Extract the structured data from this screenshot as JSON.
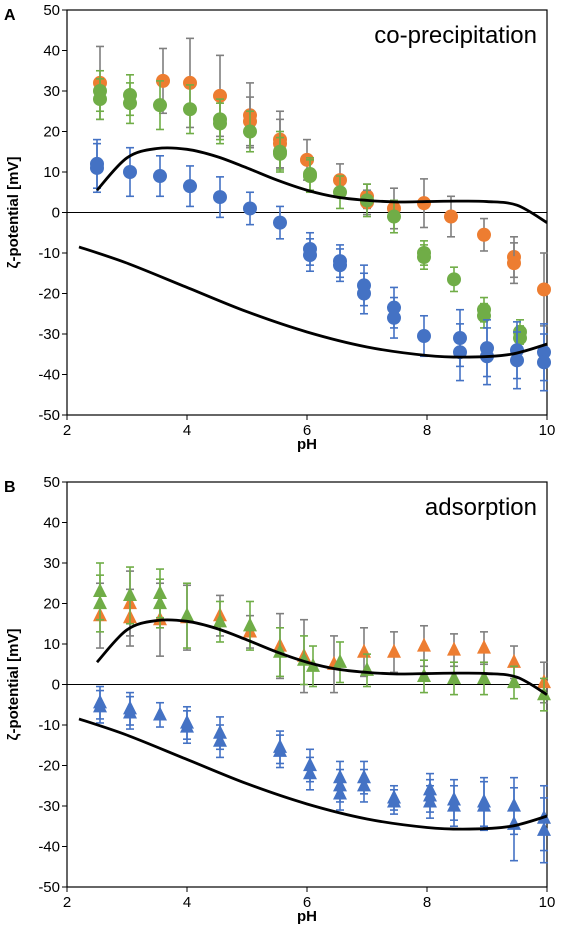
{
  "chart_data": [
    {
      "panel": "A",
      "type": "scatter",
      "annotation": "co-precipitation",
      "marker": "circle",
      "xlabel": "pH",
      "ylabel": "ζ-potential [mV]",
      "xlim": [
        2,
        10
      ],
      "ylim": [
        -50,
        50
      ],
      "xticks": [
        2,
        4,
        6,
        8,
        10
      ],
      "yticks": [
        -50,
        -40,
        -30,
        -20,
        -10,
        0,
        10,
        20,
        30,
        40,
        50
      ],
      "grid": false,
      "series": [
        {
          "color": "#ED7D31",
          "error_color": "#7F7F7F",
          "points": [
            [
              2.55,
              32,
              9
            ],
            [
              3.6,
              32.5,
              8
            ],
            [
              4.05,
              32,
              11
            ],
            [
              4.55,
              28.8,
              10
            ],
            [
              5.05,
              24,
              8
            ],
            [
              5.05,
              22.5,
              6
            ],
            [
              5.55,
              18,
              7
            ],
            [
              5.55,
              17,
              6
            ],
            [
              6.0,
              13,
              5
            ],
            [
              6.55,
              8,
              4
            ],
            [
              7.0,
              4,
              3
            ],
            [
              7.0,
              2.5,
              3
            ],
            [
              7.45,
              1,
              5
            ],
            [
              7.95,
              2.3,
              6
            ],
            [
              8.4,
              -1,
              5
            ],
            [
              8.95,
              -5.5,
              4
            ],
            [
              9.45,
              -11,
              5
            ],
            [
              9.45,
              -12.5,
              5
            ],
            [
              9.95,
              -19,
              9
            ]
          ]
        },
        {
          "color": "#70AD47",
          "error_color": "#70AD47",
          "points": [
            [
              2.55,
              30,
              5
            ],
            [
              2.55,
              28,
              5
            ],
            [
              3.05,
              29,
              5
            ],
            [
              3.05,
              27,
              5
            ],
            [
              3.55,
              26.5,
              6
            ],
            [
              4.05,
              25.5,
              6
            ],
            [
              4.55,
              23,
              5
            ],
            [
              4.55,
              22,
              5
            ],
            [
              5.05,
              20,
              5
            ],
            [
              5.55,
              15,
              5
            ],
            [
              5.55,
              14.5,
              4
            ],
            [
              6.05,
              9.5,
              4
            ],
            [
              6.05,
              9,
              4
            ],
            [
              6.55,
              5,
              4
            ],
            [
              7.0,
              3,
              4
            ],
            [
              7.45,
              -1,
              4
            ],
            [
              7.95,
              -10,
              3
            ],
            [
              7.95,
              -11,
              3
            ],
            [
              8.45,
              -16.5,
              3
            ],
            [
              8.95,
              -24,
              3
            ],
            [
              8.95,
              -25.5,
              3
            ],
            [
              9.55,
              -29.5,
              3
            ],
            [
              9.55,
              -31,
              3
            ]
          ]
        },
        {
          "color": "#4472C4",
          "error_color": "#4472C4",
          "points": [
            [
              2.5,
              12,
              6
            ],
            [
              2.5,
              11,
              6
            ],
            [
              3.05,
              10,
              6
            ],
            [
              3.55,
              9,
              5
            ],
            [
              4.05,
              6.5,
              5
            ],
            [
              4.55,
              3.8,
              5
            ],
            [
              5.05,
              1,
              4
            ],
            [
              5.55,
              -2.5,
              4
            ],
            [
              6.05,
              -9,
              4
            ],
            [
              6.05,
              -10.5,
              4
            ],
            [
              6.55,
              -12,
              4
            ],
            [
              6.55,
              -13,
              4
            ],
            [
              6.95,
              -18,
              5
            ],
            [
              6.95,
              -20,
              5
            ],
            [
              7.45,
              -23.5,
              5
            ],
            [
              7.45,
              -26,
              5
            ],
            [
              7.95,
              -30.5,
              5
            ],
            [
              8.55,
              -31,
              7
            ],
            [
              8.55,
              -34.5,
              7
            ],
            [
              9.0,
              -33.5,
              7
            ],
            [
              9.0,
              -35.5,
              7
            ],
            [
              9.5,
              -34,
              7
            ],
            [
              9.5,
              -36.5,
              7
            ],
            [
              9.95,
              -34.5,
              7
            ],
            [
              9.95,
              -37,
              7
            ]
          ]
        }
      ],
      "curves": [
        {
          "color": "#000000",
          "x": [
            2.5,
            3.0,
            3.5,
            4.0,
            4.5,
            5.0,
            5.5,
            6.0,
            6.5,
            7.0,
            7.5,
            8.0,
            8.5,
            9.0,
            9.5,
            10.0
          ],
          "y": [
            5.5,
            13.5,
            15.8,
            15.6,
            13.8,
            11.0,
            8.0,
            5.5,
            3.8,
            3.0,
            2.6,
            2.7,
            2.8,
            2.7,
            1.8,
            -2.5
          ]
        },
        {
          "color": "#000000",
          "x": [
            2.2,
            3.0,
            4.0,
            5.0,
            6.0,
            7.0,
            8.0,
            8.7,
            9.4,
            10.0
          ],
          "y": [
            -8.5,
            -12.5,
            -18.5,
            -24.5,
            -29.5,
            -33.2,
            -35.3,
            -35.7,
            -35.0,
            -32.5
          ]
        }
      ]
    },
    {
      "panel": "B",
      "type": "scatter",
      "annotation": "adsorption",
      "marker": "triangle",
      "xlabel": "pH",
      "ylabel": "ζ-potential [mV]",
      "xlim": [
        2,
        10
      ],
      "ylim": [
        -50,
        50
      ],
      "xticks": [
        2,
        4,
        6,
        8,
        10
      ],
      "yticks": [
        -50,
        -40,
        -30,
        -20,
        -10,
        0,
        10,
        20,
        30,
        40,
        50
      ],
      "grid": false,
      "series": [
        {
          "color": "#ED7D31",
          "error_color": "#7F7F7F",
          "points": [
            [
              2.55,
              17,
              8
            ],
            [
              3.05,
              20,
              8
            ],
            [
              3.05,
              16.5,
              7
            ],
            [
              3.55,
              16,
              9
            ],
            [
              4.0,
              16.5,
              8
            ],
            [
              4.55,
              17,
              5
            ],
            [
              5.05,
              13,
              4
            ],
            [
              5.55,
              9.5,
              8
            ],
            [
              5.95,
              7,
              9
            ],
            [
              6.45,
              5,
              7
            ],
            [
              6.95,
              8,
              6
            ],
            [
              7.45,
              8,
              5
            ],
            [
              7.95,
              9.5,
              5
            ],
            [
              8.45,
              8.5,
              4
            ],
            [
              8.95,
              9,
              4
            ],
            [
              9.45,
              5.5,
              4
            ],
            [
              9.95,
              0.5,
              5
            ]
          ]
        },
        {
          "color": "#70AD47",
          "error_color": "#70AD47",
          "points": [
            [
              2.55,
              23,
              7
            ],
            [
              2.55,
              20,
              7
            ],
            [
              3.05,
              22,
              7
            ],
            [
              3.55,
              22.5,
              6
            ],
            [
              3.55,
              20,
              6
            ],
            [
              4.0,
              17,
              8
            ],
            [
              4.55,
              15.5,
              5
            ],
            [
              5.05,
              14.5,
              6
            ],
            [
              5.55,
              8,
              6
            ],
            [
              5.95,
              6,
              6
            ],
            [
              6.1,
              4.5,
              5
            ],
            [
              6.55,
              5.5,
              5
            ],
            [
              7.0,
              3.5,
              4
            ],
            [
              7.95,
              2,
              4
            ],
            [
              8.45,
              1.5,
              4
            ],
            [
              8.95,
              1.5,
              4
            ],
            [
              9.45,
              0.5,
              4
            ],
            [
              9.95,
              -2.5,
              4
            ]
          ]
        },
        {
          "color": "#4472C4",
          "error_color": "#4472C4",
          "points": [
            [
              2.55,
              -4.5,
              4
            ],
            [
              2.55,
              -5.5,
              4
            ],
            [
              3.05,
              -6,
              4
            ],
            [
              3.05,
              -7,
              4
            ],
            [
              3.55,
              -7.5,
              3
            ],
            [
              4.0,
              -9.5,
              4
            ],
            [
              4.0,
              -10.5,
              4
            ],
            [
              4.55,
              -12,
              4
            ],
            [
              4.55,
              -14,
              4
            ],
            [
              5.55,
              -15.5,
              4
            ],
            [
              5.55,
              -16.5,
              4
            ],
            [
              6.05,
              -20,
              4
            ],
            [
              6.05,
              -22,
              4
            ],
            [
              6.55,
              -23,
              4
            ],
            [
              6.55,
              -25,
              4
            ],
            [
              6.55,
              -27,
              4
            ],
            [
              6.95,
              -23,
              4
            ],
            [
              6.95,
              -25,
              4
            ],
            [
              7.45,
              -28,
              3
            ],
            [
              7.45,
              -29,
              3
            ],
            [
              8.05,
              -26,
              4
            ],
            [
              8.05,
              -27.5,
              4
            ],
            [
              8.05,
              -29,
              4
            ],
            [
              8.45,
              -28.5,
              5
            ],
            [
              8.45,
              -30,
              5
            ],
            [
              8.95,
              -29,
              6
            ],
            [
              8.95,
              -30,
              6
            ],
            [
              9.45,
              -30,
              7
            ],
            [
              9.45,
              -34.5,
              9
            ],
            [
              9.95,
              -33,
              8
            ],
            [
              9.95,
              -36,
              8
            ]
          ]
        }
      ],
      "curves": [
        {
          "color": "#000000",
          "x": [
            2.5,
            3.0,
            3.5,
            4.0,
            4.5,
            5.0,
            5.5,
            6.0,
            6.5,
            7.0,
            7.5,
            8.0,
            8.5,
            9.0,
            9.5,
            10.0
          ],
          "y": [
            5.5,
            13.5,
            15.8,
            15.6,
            13.8,
            11.0,
            8.0,
            5.5,
            3.8,
            3.0,
            2.6,
            2.7,
            2.8,
            2.7,
            1.8,
            -2.5
          ]
        },
        {
          "color": "#000000",
          "x": [
            2.2,
            3.0,
            4.0,
            5.0,
            6.0,
            7.0,
            8.0,
            8.7,
            9.4,
            10.0
          ],
          "y": [
            -8.5,
            -12.5,
            -18.5,
            -24.5,
            -29.5,
            -33.2,
            -35.3,
            -35.7,
            -35.0,
            -32.5
          ]
        }
      ]
    }
  ]
}
